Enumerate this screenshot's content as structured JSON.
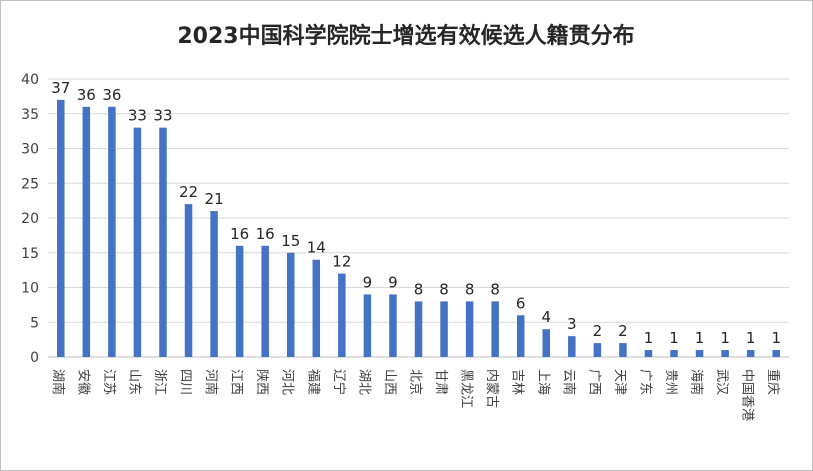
{
  "chart_data": {
    "type": "bar",
    "title": "2023中国科学院院士增选有效候选人籍贯分布",
    "xlabel": "",
    "ylabel": "",
    "ylim": [
      0,
      40
    ],
    "yticks": [
      0,
      5,
      10,
      15,
      20,
      25,
      30,
      35,
      40
    ],
    "grid": true,
    "legend": "none",
    "bar_color": "#4472C4",
    "categories": [
      "湖南",
      "安徽",
      "江苏",
      "山东",
      "浙江",
      "四川",
      "河南",
      "江西",
      "陕西",
      "河北",
      "福建",
      "辽宁",
      "湖北",
      "山西",
      "北京",
      "甘肃",
      "黑龙江",
      "内蒙古",
      "吉林",
      "上海",
      "云南",
      "广西",
      "天津",
      "广东",
      "贵州",
      "海南",
      "武汉",
      "中国香港",
      "重庆"
    ],
    "values": [
      37,
      36,
      36,
      33,
      33,
      22,
      21,
      16,
      16,
      15,
      14,
      12,
      9,
      9,
      8,
      8,
      8,
      8,
      6,
      4,
      3,
      2,
      2,
      1,
      1,
      1,
      1,
      1,
      1
    ]
  }
}
